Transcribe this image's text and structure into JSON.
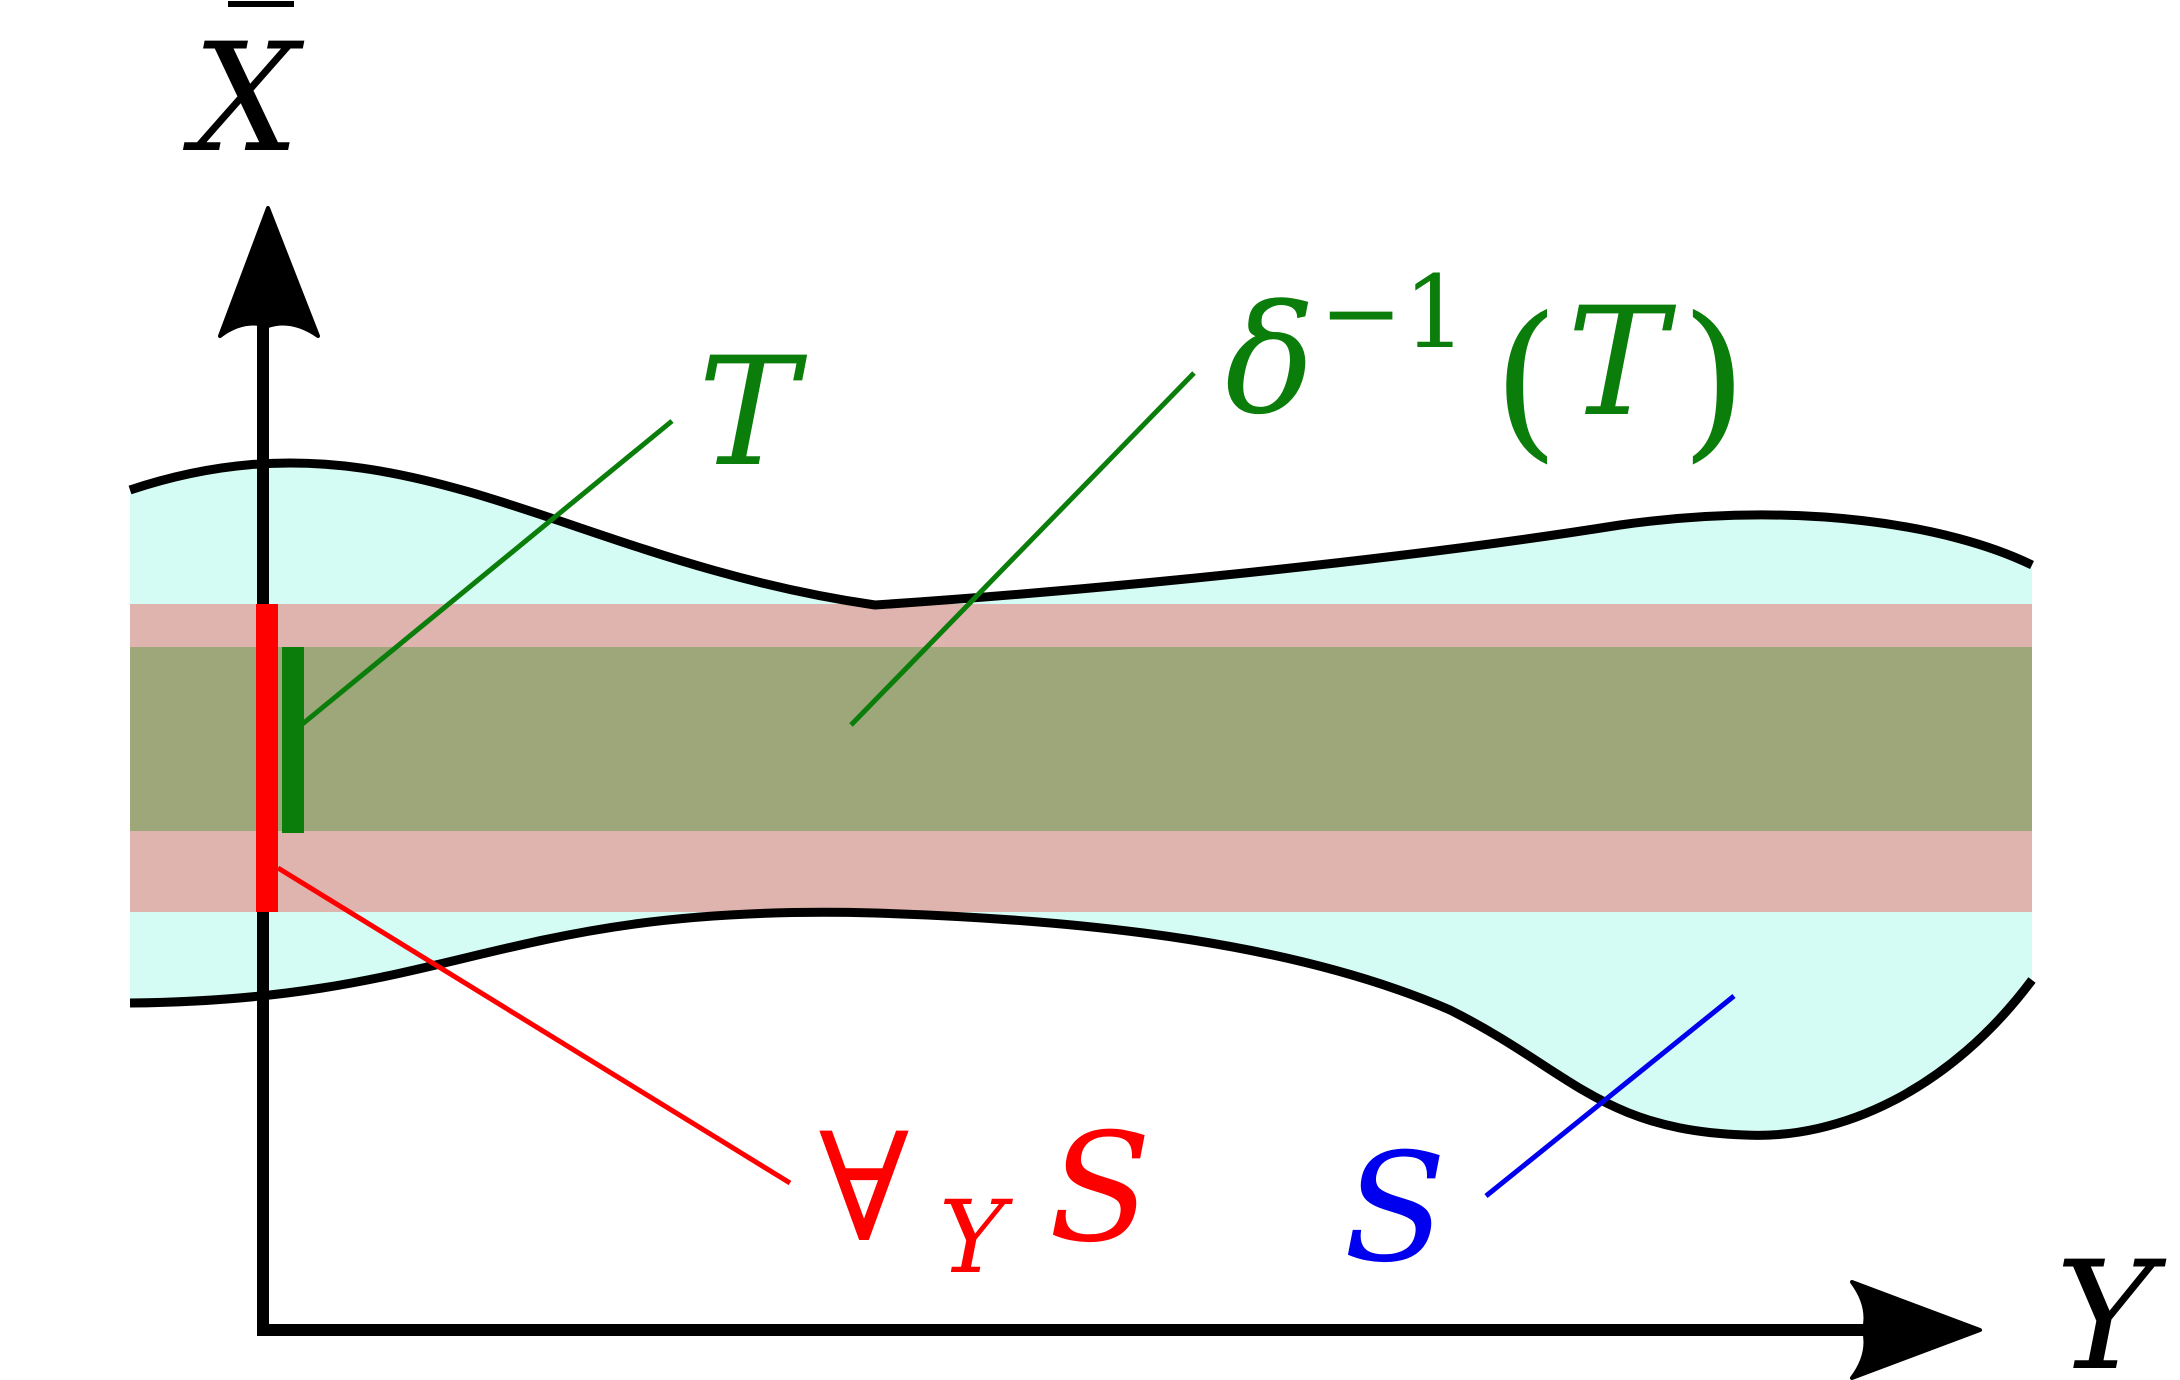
{
  "colors": {
    "axis": "#000000",
    "region_S": "#d4fbf4",
    "band_forall": "#e0b4ae",
    "band_delta": "#9ea77a",
    "red": "#ff0000",
    "green": "#0a7d0a",
    "blue": "#0000ee"
  },
  "axes": {
    "x_label_base": "X",
    "y_label": "Y"
  },
  "labels": {
    "T": "T",
    "delta_base": "δ",
    "delta_exp": "−1",
    "delta_arg_open": "(",
    "delta_arg": "T",
    "delta_arg_close": ")",
    "forall_symbol": "∀",
    "forall_sub": "Y",
    "forall_S": "S",
    "S": "S"
  }
}
